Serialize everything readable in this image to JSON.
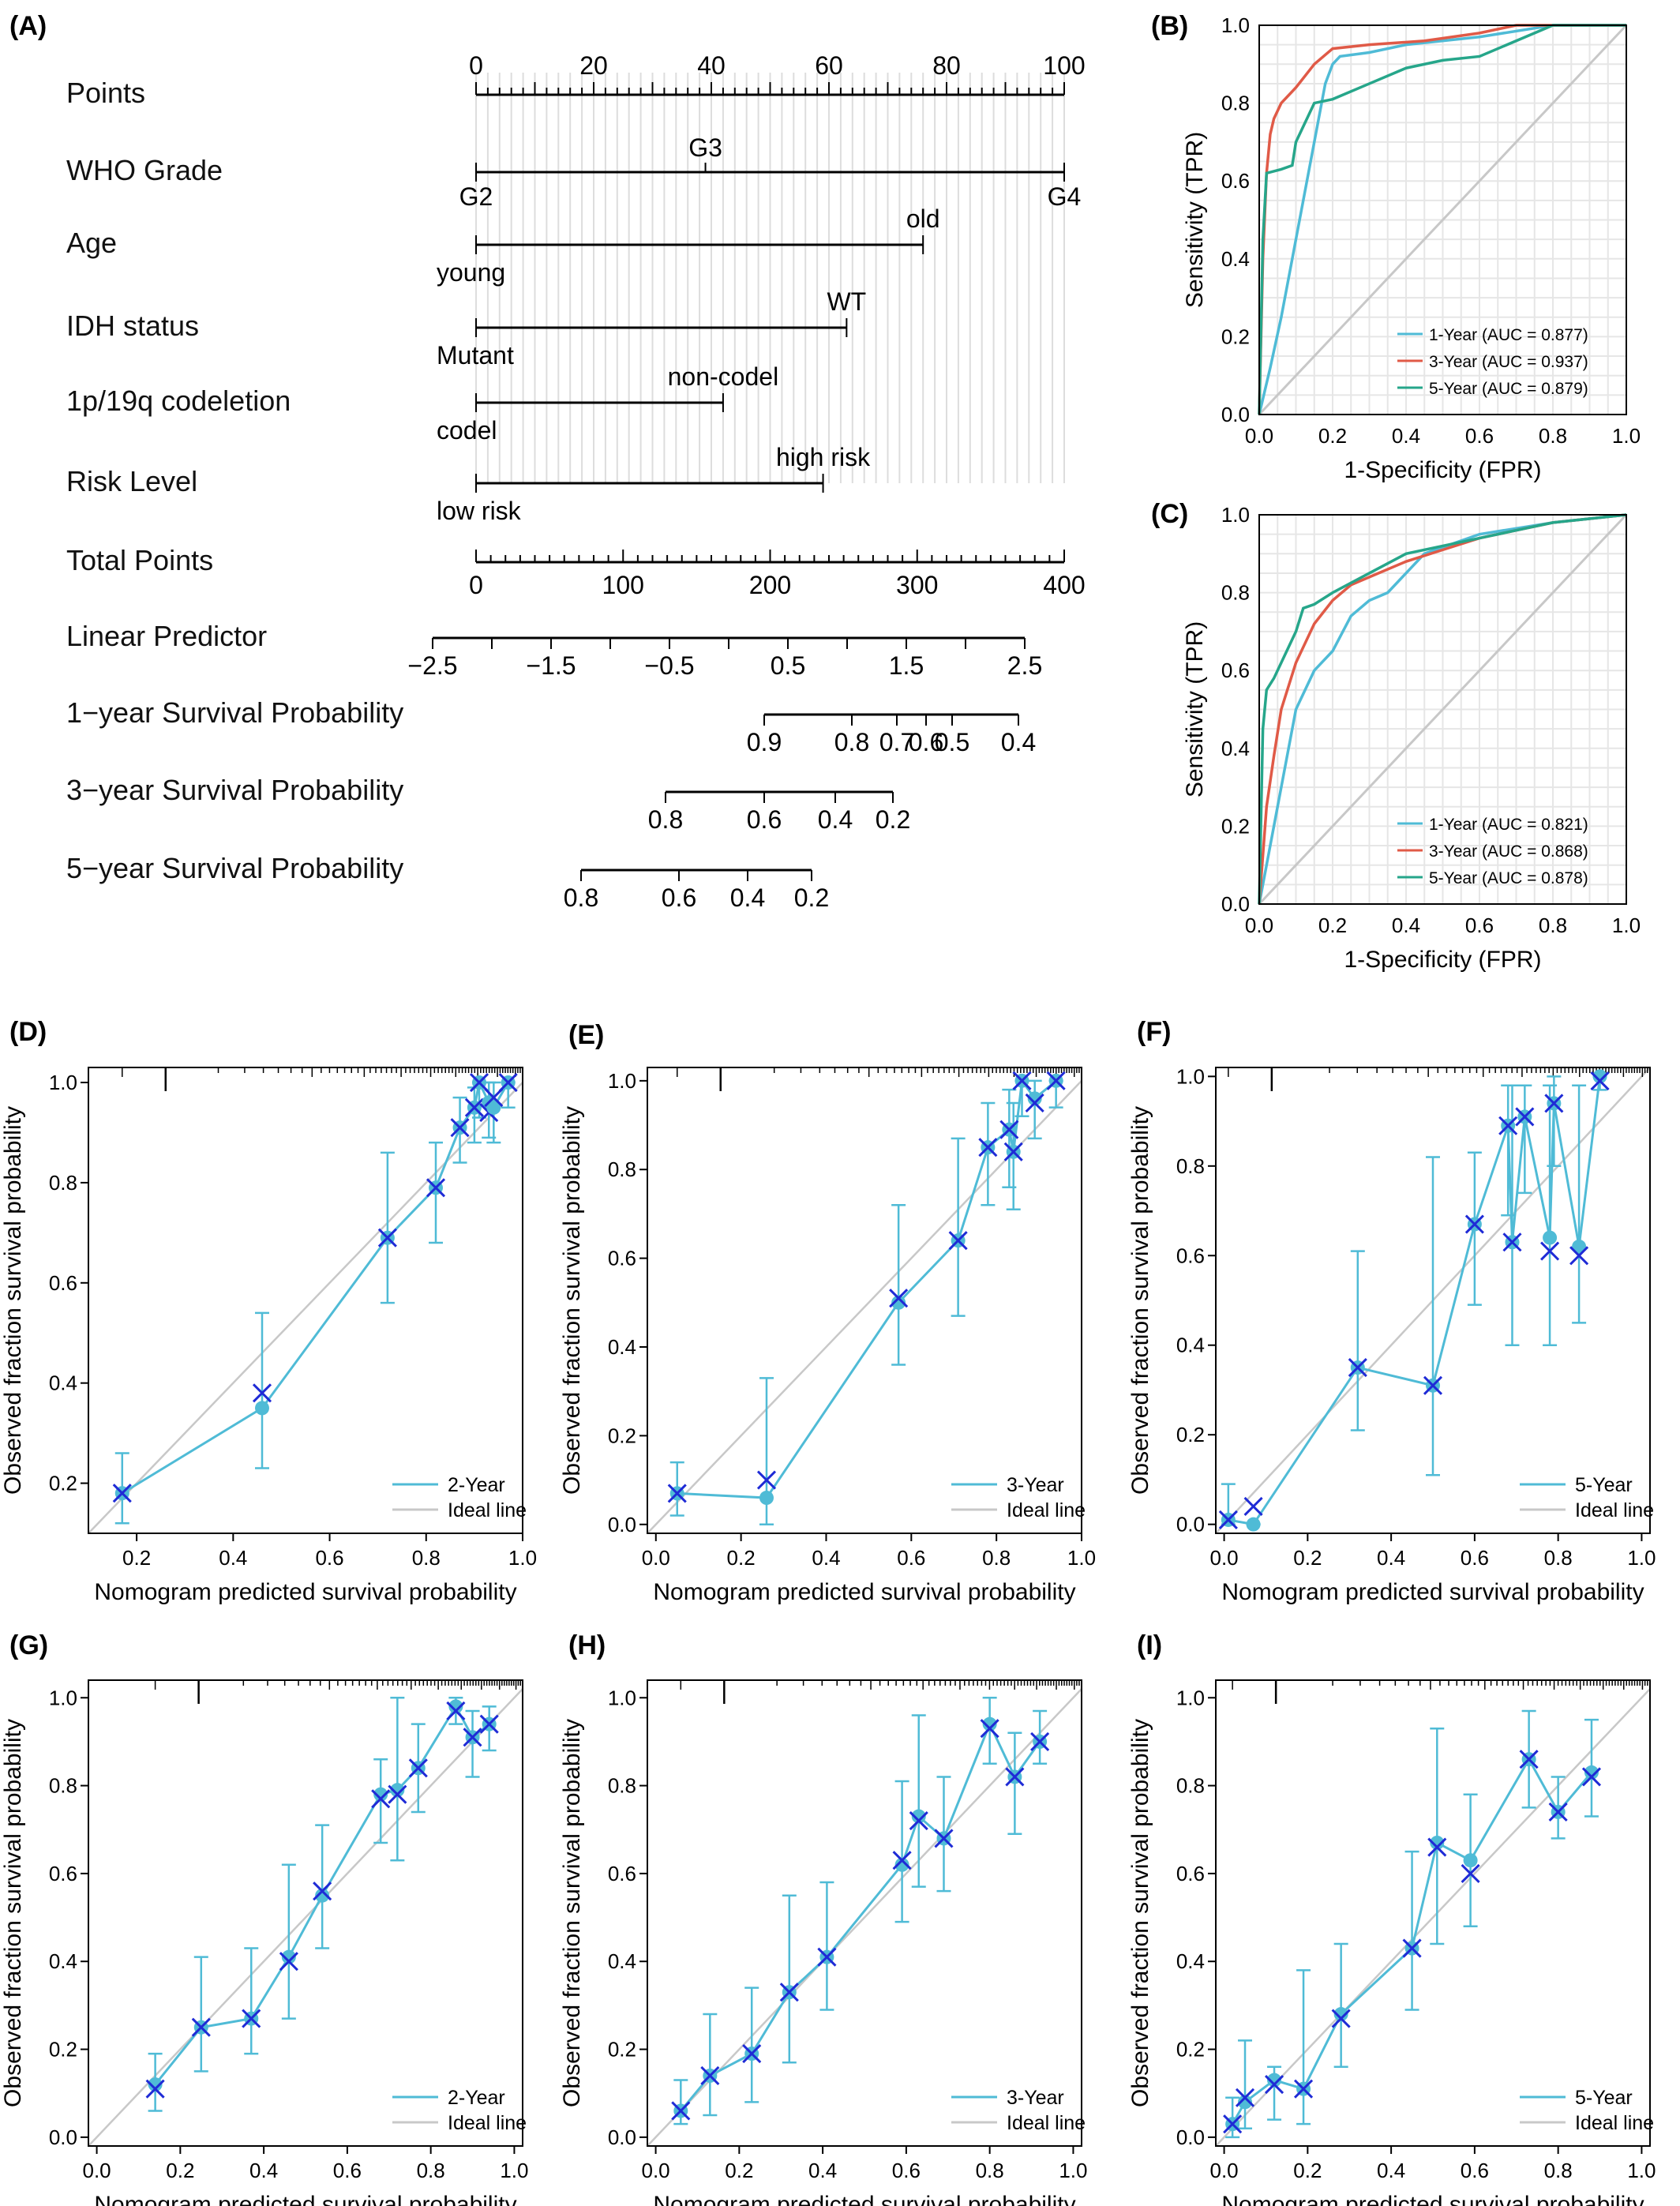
{
  "panel_labels": [
    "(A)",
    "(B)",
    "(C)",
    "(D)",
    "(E)",
    "(F)",
    "(G)",
    "(H)",
    "(I)"
  ],
  "nomogram": {
    "rows": [
      {
        "label": "Points",
        "ticks": [
          0,
          20,
          40,
          60,
          80,
          100
        ]
      },
      {
        "label": "WHO Grade",
        "levels": [
          "G2",
          "G3",
          "G4"
        ]
      },
      {
        "label": "Age",
        "levels": [
          "young",
          "old"
        ]
      },
      {
        "label": "IDH status",
        "levels": [
          "Mutant",
          "WT"
        ]
      },
      {
        "label": "1p/19q codeletion",
        "levels": [
          "codel",
          "non-codel"
        ]
      },
      {
        "label": "Risk Level",
        "levels": [
          "low risk",
          "high risk"
        ]
      },
      {
        "label": "Total Points",
        "ticks": [
          0,
          100,
          200,
          300,
          400
        ]
      },
      {
        "label": "Linear Predictor",
        "ticks": [
          "−2.5",
          "−1.5",
          "−0.5",
          "0.5",
          "1.5",
          "2.5"
        ]
      },
      {
        "label": "1−year Survival Probability",
        "ticks": [
          "0.9",
          "0.8",
          "0.7",
          "0.6",
          "0.5",
          "0.4"
        ]
      },
      {
        "label": "3−year Survival Probability",
        "ticks": [
          "0.8",
          "0.6",
          "0.4",
          "0.2"
        ]
      },
      {
        "label": "5−year Survival Probability",
        "ticks": [
          "0.8",
          "0.6",
          "0.4",
          "0.2"
        ]
      }
    ]
  },
  "chart_data": [
    {
      "panel": "(B)",
      "type": "line",
      "xlabel": "1-Specificity (FPR)",
      "ylabel": "Sensitivity (TPR)",
      "xlim": [
        0,
        1
      ],
      "ylim": [
        0,
        1
      ],
      "grid": true,
      "legend": "bottom-right",
      "ticks": [
        "0.0",
        "0.2",
        "0.4",
        "0.6",
        "0.8",
        "1.0"
      ],
      "series": [
        {
          "name": "1-Year (AUC = 0.877)",
          "color": "#4fbbd6",
          "x": [
            0,
            0.03,
            0.06,
            0.09,
            0.12,
            0.15,
            0.18,
            0.2,
            0.22,
            0.3,
            0.4,
            0.6,
            0.8,
            1.0
          ],
          "y": [
            0,
            0.12,
            0.25,
            0.4,
            0.55,
            0.7,
            0.85,
            0.9,
            0.92,
            0.93,
            0.95,
            0.97,
            1.0,
            1.0
          ]
        },
        {
          "name": "3-Year (AUC = 0.937)",
          "color": "#e05a47",
          "x": [
            0,
            0.01,
            0.02,
            0.03,
            0.04,
            0.06,
            0.1,
            0.15,
            0.2,
            0.3,
            0.45,
            0.6,
            0.7,
            1.0
          ],
          "y": [
            0,
            0.4,
            0.62,
            0.72,
            0.76,
            0.8,
            0.84,
            0.9,
            0.94,
            0.95,
            0.96,
            0.98,
            1.0,
            1.0
          ]
        },
        {
          "name": "5-Year (AUC = 0.879)",
          "color": "#26a68a",
          "x": [
            0,
            0.01,
            0.02,
            0.06,
            0.09,
            0.1,
            0.13,
            0.15,
            0.2,
            0.3,
            0.4,
            0.5,
            0.6,
            0.8,
            1.0
          ],
          "y": [
            0,
            0.45,
            0.62,
            0.63,
            0.64,
            0.7,
            0.76,
            0.8,
            0.81,
            0.85,
            0.89,
            0.91,
            0.92,
            1.0,
            1.0
          ]
        }
      ]
    },
    {
      "panel": "(C)",
      "type": "line",
      "xlabel": "1-Specificity (FPR)",
      "ylabel": "Sensitivity (TPR)",
      "xlim": [
        0,
        1
      ],
      "ylim": [
        0,
        1
      ],
      "grid": true,
      "legend": "bottom-right",
      "ticks": [
        "0.0",
        "0.2",
        "0.4",
        "0.6",
        "0.8",
        "1.0"
      ],
      "series": [
        {
          "name": "1-Year (AUC = 0.821)",
          "color": "#4fbbd6",
          "x": [
            0,
            0.02,
            0.05,
            0.08,
            0.1,
            0.15,
            0.2,
            0.25,
            0.3,
            0.35,
            0.45,
            0.6,
            0.8,
            1.0
          ],
          "y": [
            0,
            0.1,
            0.25,
            0.4,
            0.5,
            0.6,
            0.65,
            0.74,
            0.78,
            0.8,
            0.9,
            0.95,
            0.98,
            1.0
          ]
        },
        {
          "name": "3-Year (AUC = 0.868)",
          "color": "#e05a47",
          "x": [
            0,
            0.02,
            0.04,
            0.06,
            0.1,
            0.15,
            0.2,
            0.25,
            0.3,
            0.4,
            0.5,
            0.6,
            0.7,
            0.8,
            1.0
          ],
          "y": [
            0,
            0.25,
            0.38,
            0.5,
            0.62,
            0.72,
            0.78,
            0.82,
            0.84,
            0.88,
            0.91,
            0.94,
            0.96,
            0.98,
            1.0
          ]
        },
        {
          "name": "5-Year (AUC = 0.878)",
          "color": "#26a68a",
          "x": [
            0,
            0.01,
            0.02,
            0.04,
            0.07,
            0.1,
            0.12,
            0.15,
            0.2,
            0.3,
            0.4,
            0.5,
            0.6,
            0.7,
            0.8,
            1.0
          ],
          "y": [
            0,
            0.45,
            0.55,
            0.58,
            0.64,
            0.7,
            0.76,
            0.77,
            0.8,
            0.85,
            0.9,
            0.92,
            0.94,
            0.96,
            0.98,
            1.0
          ]
        }
      ]
    },
    {
      "panel": "(D)",
      "type": "scatter",
      "legend_label": "2-Year",
      "xlabel": "Nomogram predicted survival probability",
      "ylabel": "Observed fraction survival probability",
      "xlim": [
        0.1,
        1.0
      ],
      "ylim": [
        0.1,
        1.03
      ],
      "xticks": [
        "0.2",
        "0.4",
        "0.6",
        "0.8",
        "1.0"
      ],
      "yticks": [
        "0.2",
        "0.4",
        "0.6",
        "0.8",
        "1.0"
      ],
      "x": [
        0.17,
        0.46,
        0.72,
        0.82,
        0.87,
        0.9,
        0.91,
        0.93,
        0.94,
        0.97
      ],
      "obs": [
        0.18,
        0.35,
        0.69,
        0.79,
        0.91,
        0.95,
        1.0,
        0.96,
        0.95,
        1.0
      ],
      "corr": [
        0.18,
        0.38,
        0.69,
        0.79,
        0.91,
        0.95,
        1.0,
        0.94,
        0.97,
        1.0
      ],
      "lo": [
        0.12,
        0.23,
        0.56,
        0.68,
        0.84,
        0.88,
        0.93,
        0.89,
        0.88,
        0.95
      ],
      "hi": [
        0.26,
        0.54,
        0.86,
        0.88,
        0.97,
        0.99,
        1.0,
        1.0,
        1.0,
        1.0
      ]
    },
    {
      "panel": "(E)",
      "type": "scatter",
      "legend_label": "3-Year",
      "xlabel": "Nomogram predicted survival probability",
      "ylabel": "Observed fraction survival probability",
      "xlim": [
        -0.02,
        1.0
      ],
      "ylim": [
        -0.02,
        1.03
      ],
      "xticks": [
        "0.0",
        "0.2",
        "0.4",
        "0.6",
        "0.8",
        "1.0"
      ],
      "yticks": [
        "0.0",
        "0.2",
        "0.4",
        "0.6",
        "0.8",
        "1.0"
      ],
      "x": [
        0.05,
        0.26,
        0.57,
        0.71,
        0.78,
        0.83,
        0.84,
        0.86,
        0.89,
        0.94
      ],
      "obs": [
        0.07,
        0.06,
        0.5,
        0.64,
        0.85,
        0.89,
        0.84,
        1.0,
        0.96,
        1.0
      ],
      "corr": [
        0.07,
        0.1,
        0.51,
        0.64,
        0.85,
        0.89,
        0.84,
        1.0,
        0.95,
        1.0
      ],
      "lo": [
        0.02,
        0.0,
        0.36,
        0.47,
        0.72,
        0.76,
        0.71,
        0.92,
        0.87,
        0.94
      ],
      "hi": [
        0.14,
        0.33,
        0.72,
        0.87,
        0.95,
        0.98,
        0.95,
        1.0,
        1.0,
        1.0
      ]
    },
    {
      "panel": "(F)",
      "type": "scatter",
      "legend_label": "5-Year",
      "xlabel": "Nomogram predicted survival probability",
      "ylabel": "Observed fraction survival probability",
      "xlim": [
        -0.02,
        1.02
      ],
      "ylim": [
        -0.02,
        1.02
      ],
      "xticks": [
        "0.0",
        "0.2",
        "0.4",
        "0.6",
        "0.8",
        "1.0"
      ],
      "yticks": [
        "0.0",
        "0.2",
        "0.4",
        "0.6",
        "0.8",
        "1.0"
      ],
      "x": [
        0.01,
        0.07,
        0.32,
        0.5,
        0.6,
        0.68,
        0.69,
        0.72,
        0.78,
        0.79,
        0.85,
        0.9
      ],
      "obs": [
        0.01,
        0.0,
        0.35,
        0.31,
        0.67,
        0.89,
        0.63,
        0.91,
        0.64,
        0.94,
        0.62,
        1.0
      ],
      "corr": [
        0.01,
        0.04,
        0.35,
        0.31,
        0.67,
        0.89,
        0.63,
        0.91,
        0.61,
        0.94,
        0.6,
        0.99
      ],
      "lo": [
        0.0,
        0.0,
        0.21,
        0.11,
        0.49,
        0.69,
        0.4,
        0.74,
        0.4,
        0.8,
        0.45,
        0.97
      ],
      "hi": [
        0.09,
        0.0,
        0.61,
        0.82,
        0.83,
        0.98,
        0.98,
        0.98,
        0.98,
        1.0,
        0.98,
        1.0
      ]
    },
    {
      "panel": "(G)",
      "type": "scatter",
      "legend_label": "2-Year",
      "xlabel": "Nomogram predicted survival probability",
      "ylabel": "Observed fraction survival probability",
      "xlim": [
        -0.02,
        1.02
      ],
      "ylim": [
        -0.02,
        1.04
      ],
      "xticks": [
        "0.0",
        "0.2",
        "0.4",
        "0.6",
        "0.8",
        "1.0"
      ],
      "yticks": [
        "0.0",
        "0.2",
        "0.4",
        "0.6",
        "0.8",
        "1.0"
      ],
      "x": [
        0.14,
        0.25,
        0.37,
        0.46,
        0.54,
        0.68,
        0.72,
        0.77,
        0.86,
        0.9,
        0.94
      ],
      "obs": [
        0.12,
        0.25,
        0.27,
        0.41,
        0.55,
        0.78,
        0.79,
        0.84,
        0.98,
        0.91,
        0.94
      ],
      "corr": [
        0.11,
        0.25,
        0.27,
        0.4,
        0.56,
        0.77,
        0.78,
        0.84,
        0.97,
        0.91,
        0.94
      ],
      "lo": [
        0.06,
        0.15,
        0.19,
        0.27,
        0.43,
        0.67,
        0.63,
        0.74,
        0.94,
        0.82,
        0.88
      ],
      "hi": [
        0.19,
        0.41,
        0.43,
        0.62,
        0.71,
        0.86,
        1.0,
        0.94,
        1.0,
        0.97,
        0.98
      ]
    },
    {
      "panel": "(H)",
      "type": "scatter",
      "legend_label": "3-Year",
      "xlabel": "Nomogram predicted survival probability",
      "ylabel": "Observed fraction survival probability",
      "xlim": [
        -0.02,
        1.02
      ],
      "ylim": [
        -0.02,
        1.04
      ],
      "xticks": [
        "0.0",
        "0.2",
        "0.4",
        "0.6",
        "0.8",
        "1.0"
      ],
      "yticks": [
        "0.0",
        "0.2",
        "0.4",
        "0.6",
        "0.8",
        "1.0"
      ],
      "x": [
        0.06,
        0.13,
        0.23,
        0.32,
        0.41,
        0.59,
        0.63,
        0.69,
        0.8,
        0.86,
        0.92
      ],
      "obs": [
        0.06,
        0.14,
        0.19,
        0.33,
        0.41,
        0.62,
        0.73,
        0.68,
        0.94,
        0.82,
        0.9
      ],
      "corr": [
        0.06,
        0.14,
        0.19,
        0.33,
        0.41,
        0.63,
        0.72,
        0.68,
        0.93,
        0.82,
        0.9
      ],
      "lo": [
        0.03,
        0.05,
        0.08,
        0.17,
        0.29,
        0.49,
        0.57,
        0.56,
        0.85,
        0.69,
        0.85
      ],
      "hi": [
        0.13,
        0.28,
        0.34,
        0.55,
        0.58,
        0.81,
        0.96,
        0.82,
        1.0,
        0.92,
        0.97
      ]
    },
    {
      "panel": "(I)",
      "type": "scatter",
      "legend_label": "5-Year",
      "xlabel": "Nomogram predicted survival probability",
      "ylabel": "Observed fraction survival probability",
      "xlim": [
        -0.02,
        1.02
      ],
      "ylim": [
        -0.02,
        1.04
      ],
      "xticks": [
        "0.0",
        "0.2",
        "0.4",
        "0.6",
        "0.8",
        "1.0"
      ],
      "yticks": [
        "0.0",
        "0.2",
        "0.4",
        "0.6",
        "0.8",
        "1.0"
      ],
      "x": [
        0.02,
        0.05,
        0.12,
        0.19,
        0.28,
        0.45,
        0.51,
        0.59,
        0.73,
        0.8,
        0.88
      ],
      "obs": [
        0.03,
        0.08,
        0.13,
        0.11,
        0.28,
        0.43,
        0.67,
        0.63,
        0.86,
        0.74,
        0.83
      ],
      "corr": [
        0.03,
        0.09,
        0.12,
        0.11,
        0.27,
        0.43,
        0.66,
        0.6,
        0.86,
        0.74,
        0.82
      ],
      "lo": [
        0.0,
        0.02,
        0.04,
        0.03,
        0.16,
        0.29,
        0.44,
        0.48,
        0.75,
        0.68,
        0.73
      ],
      "hi": [
        0.09,
        0.22,
        0.16,
        0.38,
        0.44,
        0.65,
        0.93,
        0.78,
        0.97,
        0.82,
        0.95
      ]
    }
  ],
  "legend_common": "Ideal line",
  "colors": {
    "calib": "#4fbbd6",
    "cross": "#1f2bd6",
    "ideal": "#c8c8c8",
    "grid": "#e6e6e6"
  }
}
